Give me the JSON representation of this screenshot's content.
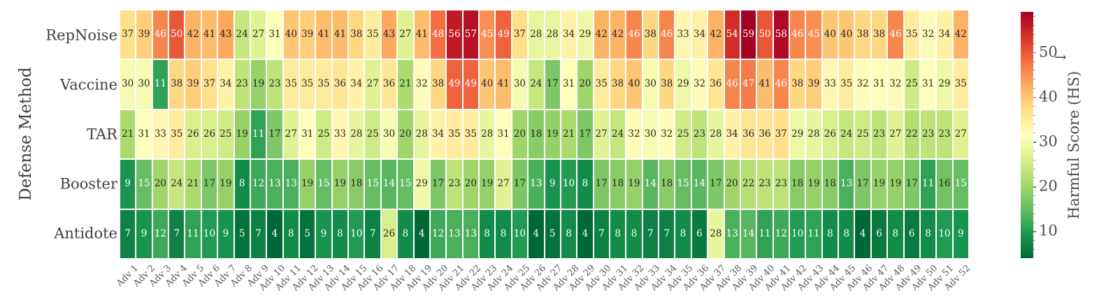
{
  "chart_data": {
    "type": "heatmap",
    "title": "",
    "xlabel": "",
    "ylabel": "Defense Method",
    "rows": [
      "RepNoise",
      "Vaccine",
      "TAR",
      "Booster",
      "Antidote"
    ],
    "columns": [
      "Adv 1",
      "Adv 2",
      "Adv 3",
      "Adv 4",
      "Adv 5",
      "Adv 6",
      "Adv 7",
      "Adv 8",
      "Adv 9",
      "Adv 10",
      "Adv 11",
      "Adv 12",
      "Adv 13",
      "Adv 14",
      "Adv 15",
      "Adv 16",
      "Adv 17",
      "Adv 18",
      "Adv 19",
      "Adv 20",
      "Adv 21",
      "Adv 22",
      "Adv 23",
      "Adv 24",
      "Adv 25",
      "Adv 26",
      "Adv 27",
      "Adv 28",
      "Adv 29",
      "Adv 30",
      "Adv 31",
      "Adv 32",
      "Adv 33",
      "Adv 34",
      "Adv 35",
      "Adv 36",
      "Adv 37",
      "Adv 38",
      "Adv 39",
      "Adv 40",
      "Adv 41",
      "Adv 42",
      "Adv 43",
      "Adv 44",
      "Adv 45",
      "Adv 46",
      "Adv 47",
      "Adv 48",
      "Adv 49",
      "Adv 50",
      "Adv 51",
      "Adv 52"
    ],
    "values": [
      [
        37,
        39,
        46,
        50,
        42,
        41,
        43,
        24,
        27,
        31,
        40,
        39,
        41,
        41,
        38,
        35,
        43,
        27,
        41,
        48,
        56,
        57,
        45,
        49,
        37,
        28,
        28,
        34,
        29,
        42,
        42,
        46,
        38,
        46,
        33,
        34,
        42,
        54,
        59,
        50,
        58,
        46,
        45,
        40,
        40,
        38,
        38,
        46,
        35,
        32,
        34,
        42
      ],
      [
        30,
        30,
        11,
        38,
        39,
        37,
        34,
        23,
        19,
        23,
        35,
        35,
        35,
        36,
        34,
        27,
        36,
        21,
        32,
        38,
        49,
        49,
        40,
        41,
        30,
        24,
        17,
        31,
        20,
        35,
        38,
        40,
        30,
        38,
        29,
        32,
        36,
        46,
        47,
        41,
        46,
        38,
        39,
        33,
        35,
        32,
        31,
        32,
        25,
        31,
        29,
        35
      ],
      [
        21,
        31,
        33,
        35,
        26,
        26,
        25,
        19,
        11,
        17,
        27,
        31,
        25,
        33,
        28,
        25,
        30,
        20,
        28,
        34,
        35,
        35,
        28,
        31,
        20,
        18,
        19,
        21,
        17,
        27,
        24,
        32,
        30,
        32,
        25,
        23,
        28,
        34,
        36,
        36,
        37,
        29,
        28,
        26,
        24,
        25,
        23,
        27,
        22,
        23,
        23,
        27
      ],
      [
        9,
        15,
        20,
        24,
        21,
        17,
        19,
        8,
        12,
        13,
        13,
        19,
        15,
        19,
        18,
        15,
        14,
        15,
        29,
        17,
        23,
        20,
        19,
        27,
        17,
        13,
        9,
        10,
        8,
        17,
        18,
        19,
        14,
        18,
        15,
        14,
        17,
        20,
        22,
        23,
        23,
        18,
        19,
        18,
        13,
        17,
        19,
        19,
        17,
        11,
        16,
        15
      ],
      [
        7,
        9,
        12,
        7,
        11,
        10,
        9,
        5,
        7,
        4,
        8,
        5,
        9,
        8,
        10,
        7,
        26,
        8,
        4,
        12,
        13,
        13,
        8,
        8,
        10,
        4,
        5,
        8,
        4,
        7,
        8,
        8,
        7,
        7,
        8,
        6,
        28,
        13,
        14,
        11,
        12,
        10,
        11,
        8,
        8,
        4,
        6,
        8,
        6,
        8,
        10,
        9
      ]
    ],
    "colorbar": {
      "label": "Harmful Score (HS)",
      "arrow": "→",
      "ticks": [
        10,
        20,
        30,
        40,
        50
      ],
      "minor_tick_step": 2,
      "vmin": 4,
      "vmax": 59,
      "colormap": "RdYlGn_r",
      "colormap_stops": [
        {
          "pos": 0.0,
          "color": "#006837"
        },
        {
          "pos": 0.1,
          "color": "#1a9850"
        },
        {
          "pos": 0.2,
          "color": "#66bd63"
        },
        {
          "pos": 0.3,
          "color": "#a6d96a"
        },
        {
          "pos": 0.4,
          "color": "#d9ef8b"
        },
        {
          "pos": 0.5,
          "color": "#ffffbf"
        },
        {
          "pos": 0.6,
          "color": "#fee08b"
        },
        {
          "pos": 0.7,
          "color": "#fdae61"
        },
        {
          "pos": 0.8,
          "color": "#f46d43"
        },
        {
          "pos": 0.9,
          "color": "#d73027"
        },
        {
          "pos": 1.0,
          "color": "#a50026"
        }
      ],
      "annot_dark_color": "#262626",
      "annot_light_color": "#ffffff"
    }
  }
}
